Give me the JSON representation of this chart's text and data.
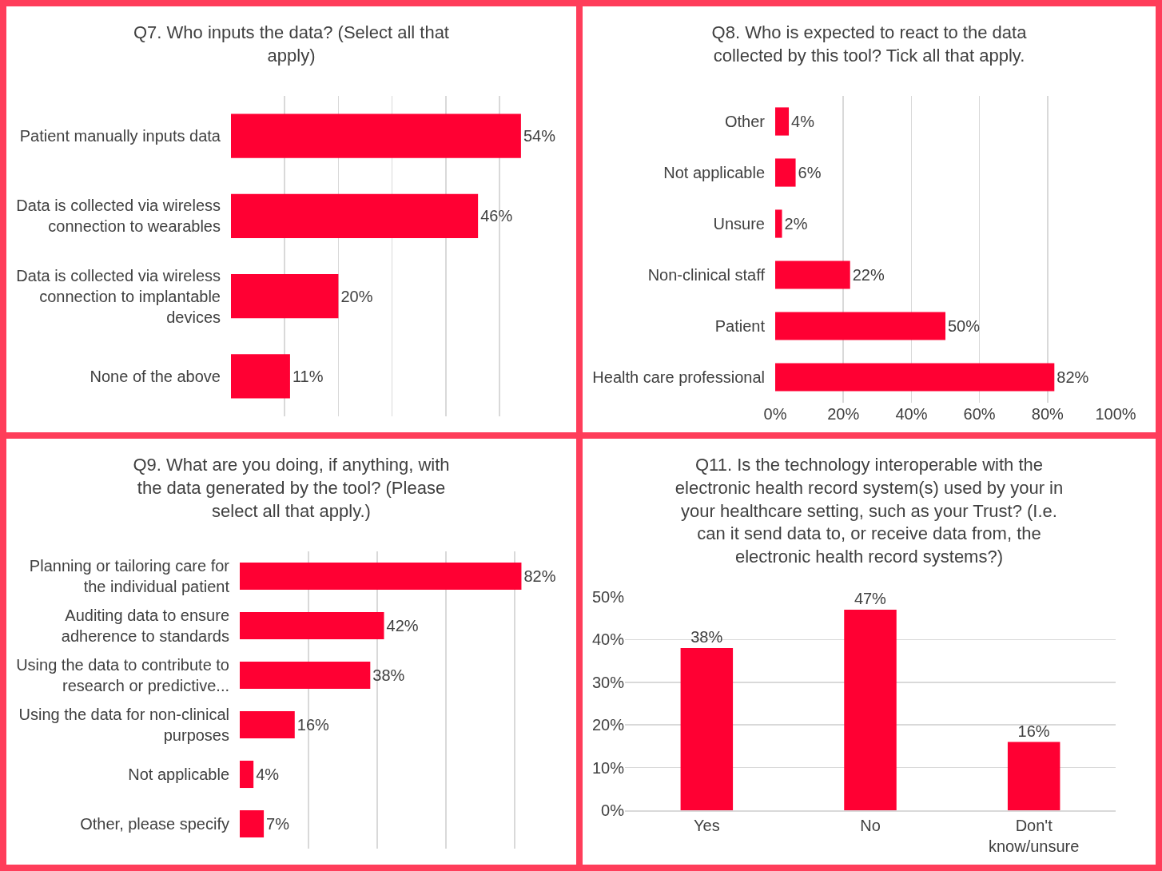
{
  "chart_data": [
    {
      "type": "bar",
      "orientation": "horizontal",
      "title": "Q7. Who inputs the data? (Select all that apply)",
      "categories": [
        "Patient manually inputs data",
        "Data is collected via wireless connection to wearables",
        "Data is collected via wireless connection to implantable devices",
        "None of the above"
      ],
      "values": [
        54,
        46,
        20,
        11
      ],
      "value_labels": [
        "54%",
        "46%",
        "20%",
        "11%"
      ],
      "color": "#ff0033",
      "grid": "x",
      "tick_labels": "y",
      "legend": false
    },
    {
      "type": "bar",
      "orientation": "horizontal",
      "title": "Q8. Who is expected to react to the data collected by this tool? Tick all that apply.",
      "categories": [
        "Other",
        "Not applicable",
        "Unsure",
        "Non-clinical staff",
        "Patient",
        "Health care professional"
      ],
      "values": [
        4,
        6,
        2,
        22,
        50,
        82
      ],
      "value_labels": [
        "4%",
        "6%",
        "2%",
        "22%",
        "50%",
        "82%"
      ],
      "color": "#ff0033",
      "xlim": [
        0,
        100
      ],
      "xticks": [
        {
          "value": 0,
          "label": "0%"
        },
        {
          "value": 20,
          "label": "20%"
        },
        {
          "value": 40,
          "label": "40%"
        },
        {
          "value": 60,
          "label": "60%"
        },
        {
          "value": 80,
          "label": "80%"
        },
        {
          "value": 100,
          "label": "100%"
        }
      ],
      "grid": "x",
      "legend": false
    },
    {
      "type": "bar",
      "orientation": "horizontal",
      "title": "Q9. What are you doing, if anything, with the data generated by the tool? (Please select all that apply.)",
      "categories": [
        "Planning or tailoring care for the individual patient",
        "Auditing data to ensure adherence to standards",
        "Using the data to contribute to research or predictive...",
        "Using the data for non-clinical purposes",
        "Not applicable",
        "Other, please specify"
      ],
      "values": [
        82,
        42,
        38,
        16,
        4,
        7
      ],
      "value_labels": [
        "82%",
        "42%",
        "38%",
        "16%",
        "4%",
        "7%"
      ],
      "color": "#ff0033",
      "grid": "x",
      "tick_labels": "y",
      "legend": false
    },
    {
      "type": "bar",
      "title": "Q11. Is the technology interoperable with the electronic health record system(s) used by your in your healthcare setting, such as your Trust? (I.e. can it send data to, or receive data from, the electronic health record systems?)",
      "categories": [
        "Yes",
        "No",
        "Don't know/unsure"
      ],
      "values": [
        38,
        47,
        16
      ],
      "value_labels": [
        "38%",
        "47%",
        "16%"
      ],
      "color": "#ff0033",
      "ylim": [
        0,
        50
      ],
      "yticks": [
        {
          "value": 0,
          "label": "0%"
        },
        {
          "value": 10,
          "label": "10%"
        },
        {
          "value": 20,
          "label": "20%"
        },
        {
          "value": 30,
          "label": "30%"
        },
        {
          "value": 40,
          "label": "40%"
        },
        {
          "value": 50,
          "label": "50%"
        }
      ],
      "grid": "y",
      "legend": false
    }
  ]
}
